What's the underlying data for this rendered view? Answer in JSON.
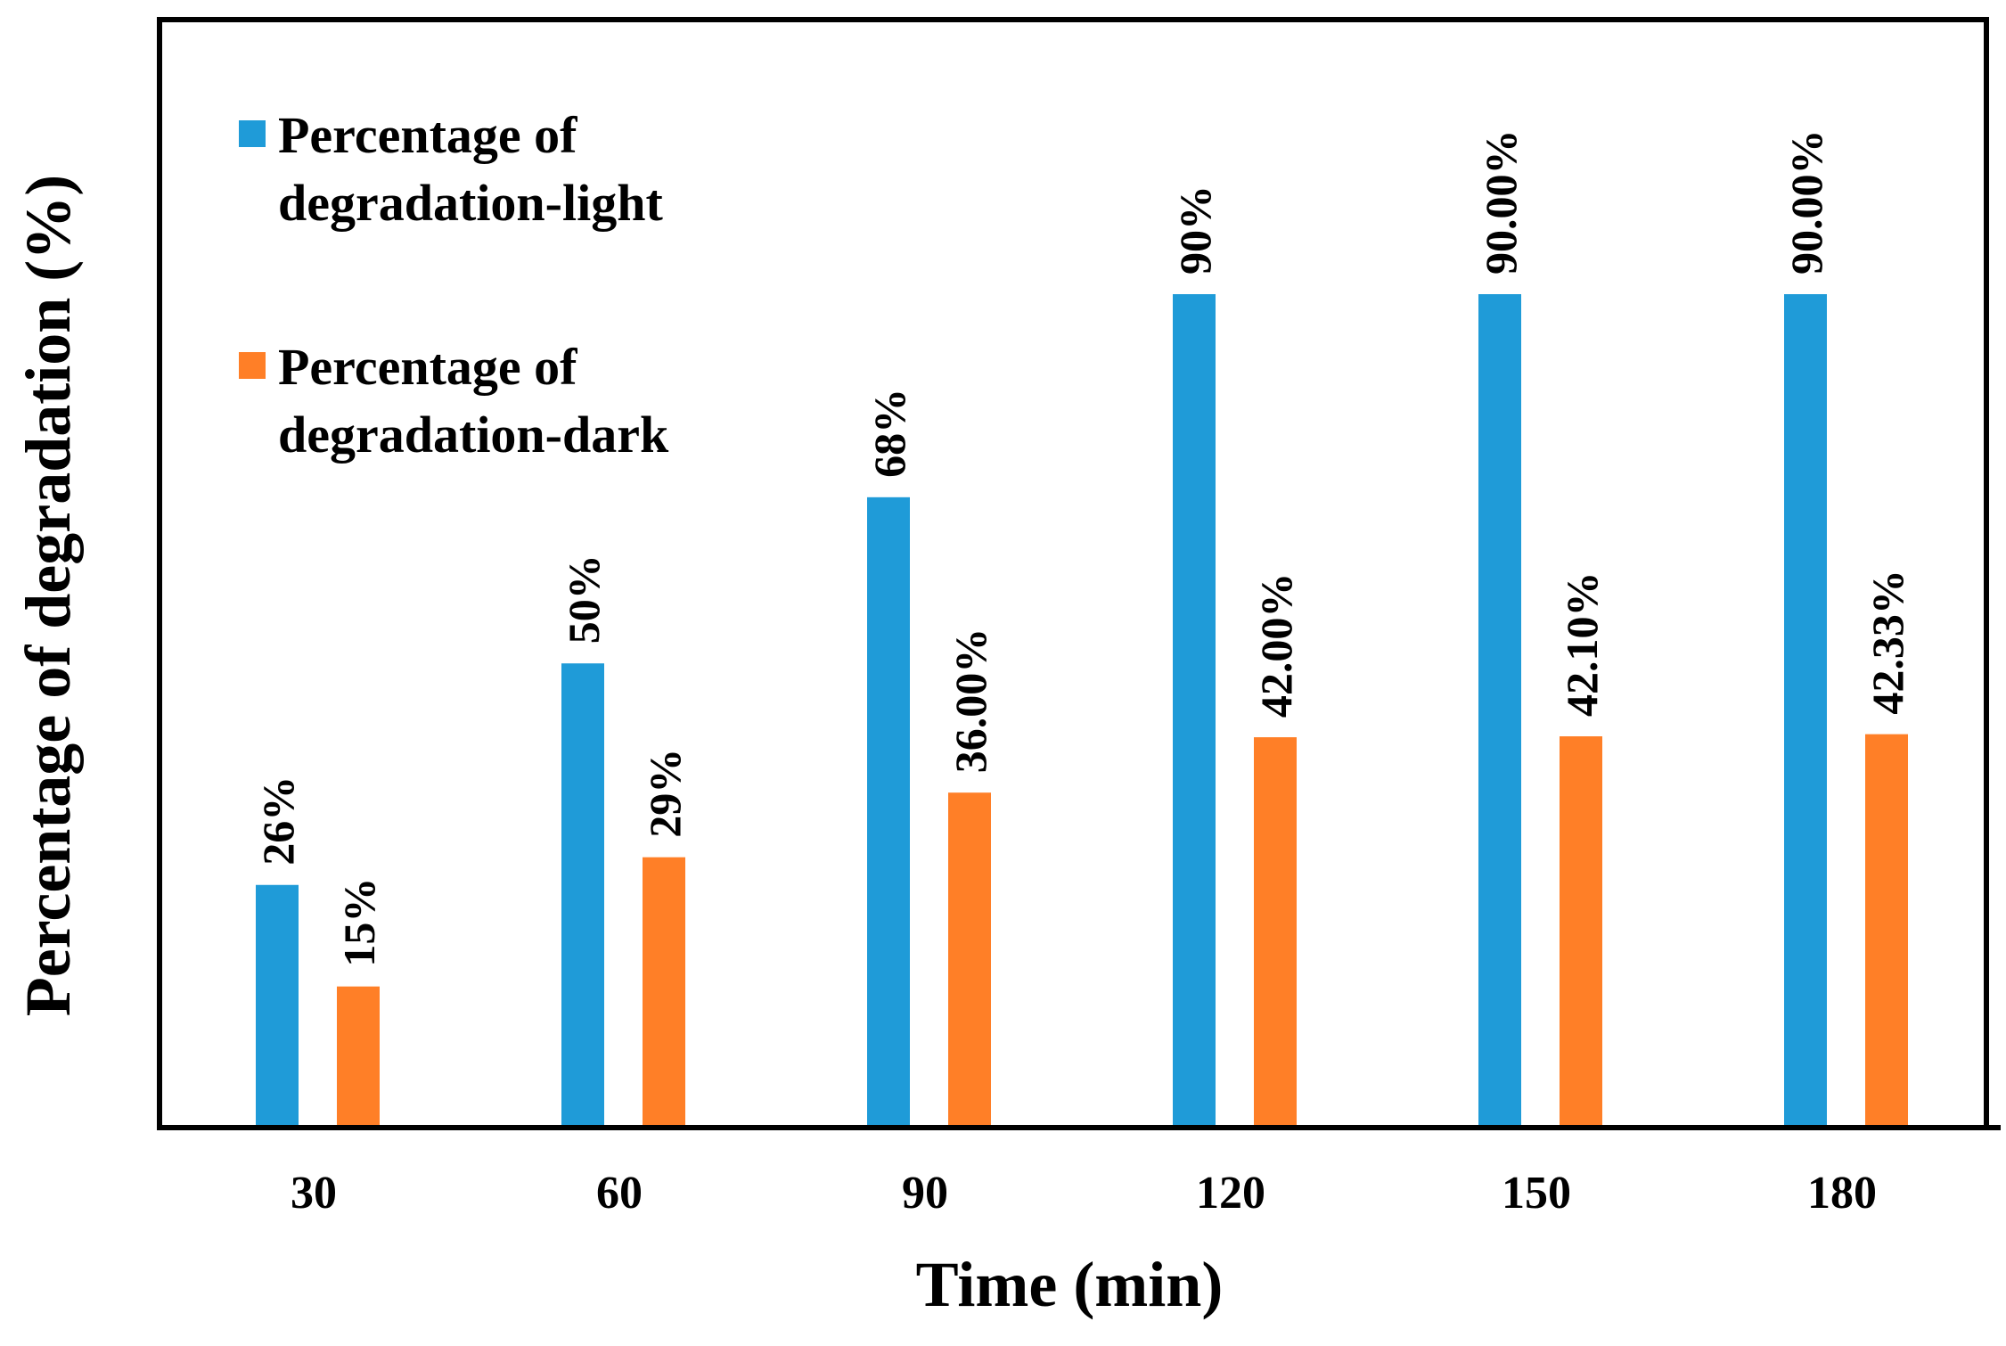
{
  "chart_data": {
    "type": "bar",
    "title": "",
    "xlabel": "Time (min)",
    "ylabel": "Percentage of degradation (%)",
    "categories": [
      "30",
      "60",
      "90",
      "120",
      "150",
      "180"
    ],
    "ylim": [
      0,
      100
    ],
    "grid": false,
    "legend_position": "top-left",
    "series": [
      {
        "name": "Percentage of degradation-light",
        "legend_lines": [
          "Percentage of",
          "degradation-light"
        ],
        "color": "#1f9bd8",
        "values": [
          26,
          50,
          68,
          90,
          90,
          90
        ],
        "data_labels": [
          "26%",
          "50%",
          "68%",
          "90%",
          "90.00%",
          "90.00%"
        ]
      },
      {
        "name": "Percentage of degradation-dark",
        "legend_lines": [
          "Percentage of",
          "degradation-dark"
        ],
        "color": "#ff7f27",
        "values": [
          15,
          29,
          36,
          42,
          42.1,
          42.33
        ],
        "data_labels": [
          "15%",
          "29%",
          "36.00%",
          "42.00%",
          "42.10%",
          "42.33%"
        ]
      }
    ]
  }
}
